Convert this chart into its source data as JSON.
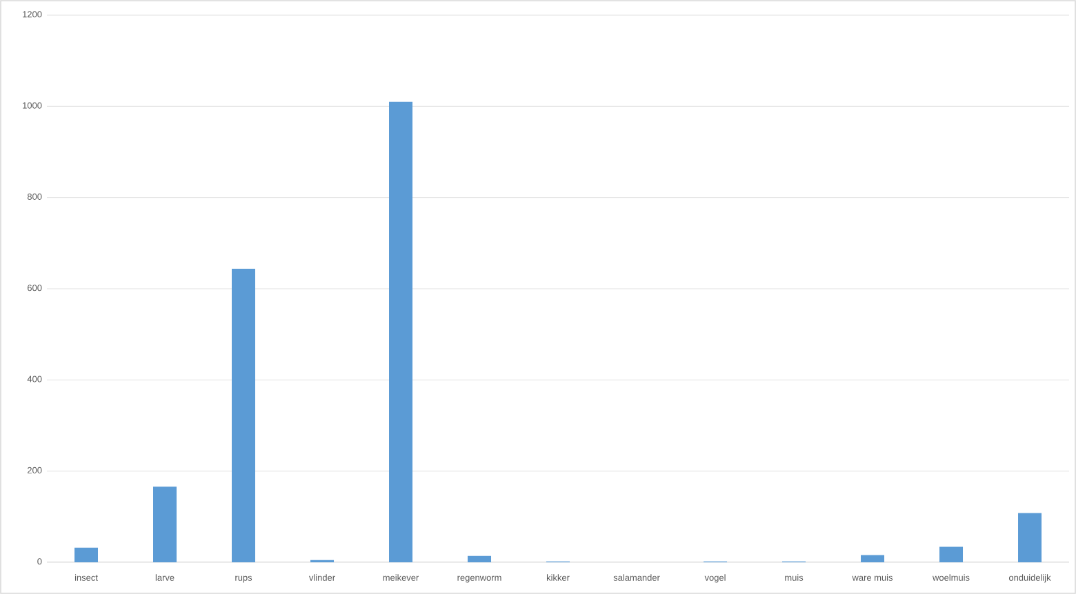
{
  "chart_data": {
    "type": "bar",
    "categories": [
      "insect",
      "larve",
      "rups",
      "vlinder",
      "meikever",
      "regenworm",
      "kikker",
      "salamander",
      "vogel",
      "muis",
      "ware muis",
      "woelmuis",
      "onduidelijk"
    ],
    "values": [
      32,
      166,
      644,
      5,
      1010,
      14,
      2,
      0,
      2,
      2,
      16,
      34,
      108
    ],
    "color": "#5b9bd5",
    "ylim": [
      0,
      1200
    ],
    "yticks": [
      0,
      200,
      400,
      600,
      800,
      1000,
      1200
    ],
    "grid": "y"
  }
}
